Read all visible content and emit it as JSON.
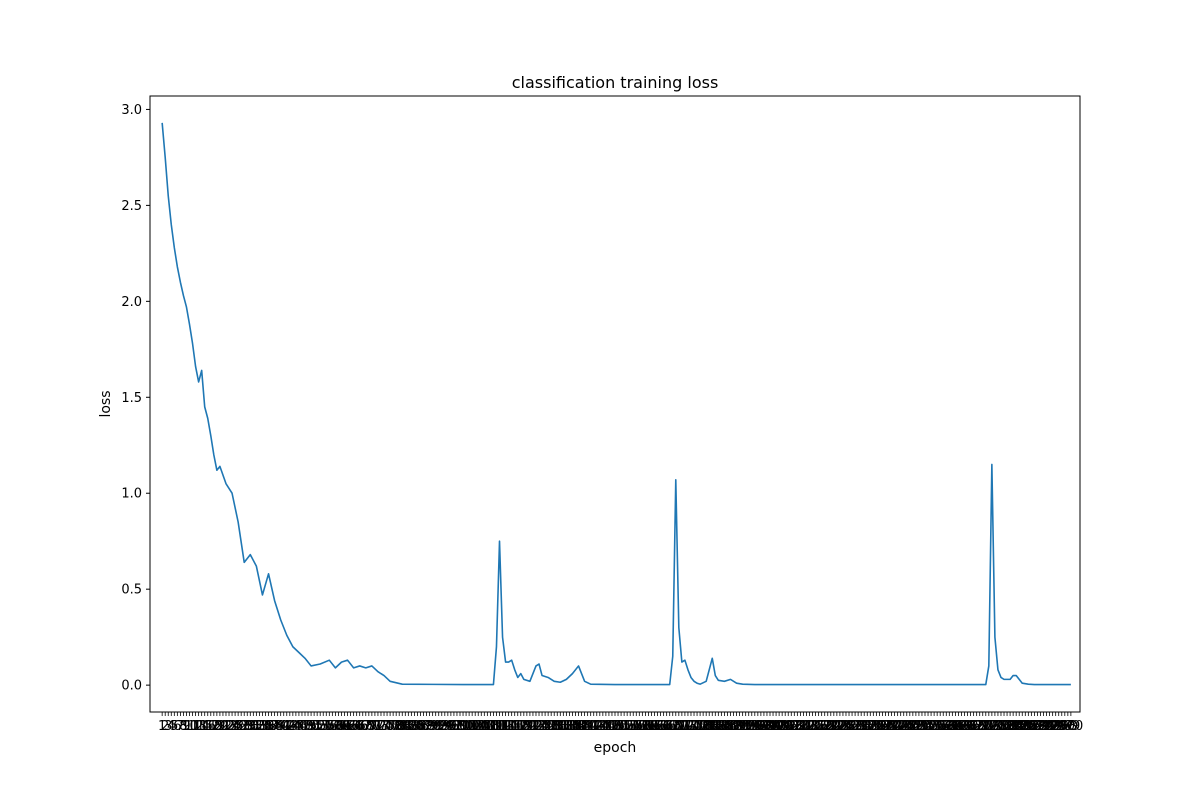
{
  "chart_data": {
    "type": "line",
    "title": "classification training loss",
    "xlabel": "epoch",
    "ylabel": "loss",
    "xlim": [
      -3,
      303
    ],
    "ylim": [
      -0.14,
      3.07
    ],
    "grid": false,
    "legend": "none",
    "line_color": "#1f77b4",
    "yticks": [
      0.0,
      0.5,
      1.0,
      1.5,
      2.0,
      2.5,
      3.0
    ],
    "ytick_labels": [
      "0.0",
      "0.5",
      "1.0",
      "1.5",
      "2.0",
      "2.5",
      "3.0"
    ],
    "xtick_label_text": "1",
    "xtick_labels_overlapping": true,
    "series": [
      {
        "x": [
          1,
          2,
          3,
          4,
          5,
          6,
          7,
          8,
          9,
          10,
          11,
          12,
          13,
          14,
          15,
          16,
          17,
          18,
          19,
          20,
          22,
          24,
          26,
          28,
          30,
          32,
          34,
          36,
          38,
          40,
          42,
          44,
          46,
          48,
          50,
          53,
          56,
          58,
          60,
          62,
          64,
          66,
          68,
          70,
          72,
          74,
          76,
          80,
          90,
          100,
          110,
          111,
          112,
          113,
          114,
          115,
          116,
          117,
          118,
          119,
          120,
          122,
          124,
          125,
          126,
          128,
          130,
          132,
          134,
          136,
          138,
          140,
          142,
          150,
          160,
          168,
          169,
          170,
          171,
          172,
          173,
          174,
          175,
          176,
          177,
          178,
          180,
          182,
          183,
          184,
          186,
          188,
          190,
          192,
          196,
          200,
          220,
          260,
          270,
          272,
          273,
          274,
          275,
          276,
          277,
          278,
          279,
          280,
          281,
          282,
          283,
          284,
          286,
          288,
          290,
          292,
          295,
          300
        ],
        "y": [
          2.93,
          2.75,
          2.55,
          2.4,
          2.28,
          2.18,
          2.1,
          2.03,
          1.97,
          1.88,
          1.78,
          1.66,
          1.58,
          1.64,
          1.45,
          1.39,
          1.3,
          1.2,
          1.12,
          1.14,
          1.05,
          1.0,
          0.85,
          0.64,
          0.68,
          0.62,
          0.47,
          0.58,
          0.44,
          0.34,
          0.26,
          0.2,
          0.17,
          0.14,
          0.1,
          0.11,
          0.13,
          0.09,
          0.12,
          0.13,
          0.09,
          0.1,
          0.09,
          0.1,
          0.07,
          0.05,
          0.02,
          0.005,
          0.004,
          0.003,
          0.003,
          0.2,
          0.75,
          0.25,
          0.12,
          0.12,
          0.13,
          0.08,
          0.04,
          0.06,
          0.03,
          0.02,
          0.1,
          0.11,
          0.05,
          0.04,
          0.02,
          0.015,
          0.03,
          0.06,
          0.1,
          0.02,
          0.005,
          0.003,
          0.003,
          0.003,
          0.15,
          1.07,
          0.3,
          0.12,
          0.13,
          0.08,
          0.04,
          0.02,
          0.01,
          0.005,
          0.02,
          0.14,
          0.05,
          0.025,
          0.02,
          0.03,
          0.01,
          0.005,
          0.003,
          0.003,
          0.003,
          0.003,
          0.003,
          0.003,
          0.1,
          1.15,
          0.25,
          0.08,
          0.04,
          0.03,
          0.03,
          0.03,
          0.05,
          0.05,
          0.03,
          0.01,
          0.005,
          0.003,
          0.003,
          0.003,
          0.003,
          0.003
        ]
      }
    ]
  }
}
